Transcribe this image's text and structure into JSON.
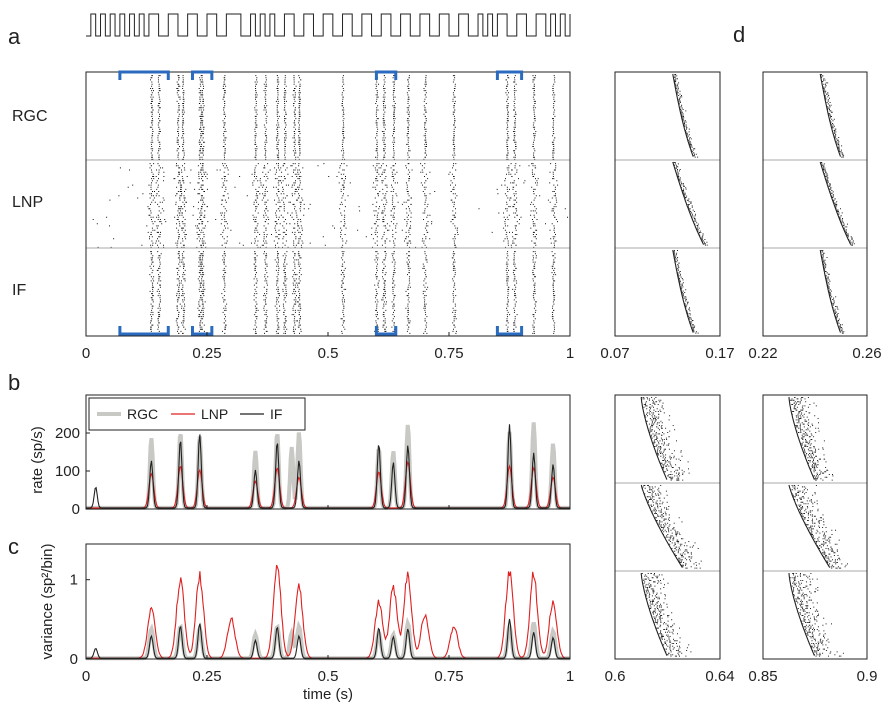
{
  "panel_labels": {
    "a": "a",
    "b": "b",
    "c": "c",
    "d": "d"
  },
  "row_labels": [
    "RGC",
    "LNP",
    "IF"
  ],
  "raster_main": {
    "x_ticks": [
      "0",
      "0.25",
      "0.5",
      "0.75",
      "1"
    ],
    "xlim": [
      0,
      1
    ],
    "highlight_windows": [
      [
        0.07,
        0.17
      ],
      [
        0.22,
        0.26
      ],
      [
        0.6,
        0.64
      ],
      [
        0.85,
        0.9
      ]
    ]
  },
  "stimulus": {
    "description_levels": [
      "low",
      "high"
    ],
    "transitions": [
      0.0,
      0.01,
      0.02,
      0.03,
      0.04,
      0.05,
      0.06,
      0.07,
      0.08,
      0.09,
      0.1,
      0.11,
      0.12,
      0.13,
      0.15,
      0.17,
      0.19,
      0.21,
      0.23,
      0.25,
      0.27,
      0.29,
      0.32,
      0.34,
      0.35,
      0.36,
      0.37,
      0.38,
      0.39,
      0.41,
      0.43,
      0.45,
      0.47,
      0.49,
      0.51,
      0.53,
      0.55,
      0.57,
      0.59,
      0.61,
      0.63,
      0.65,
      0.67,
      0.69,
      0.71,
      0.73,
      0.75,
      0.77,
      0.79,
      0.81,
      0.82,
      0.83,
      0.84,
      0.85,
      0.87,
      0.89,
      0.91,
      0.93,
      0.95,
      0.96,
      0.97,
      0.98,
      0.99,
      1.0
    ]
  },
  "zoom_panels": [
    {
      "x_ticks": [
        "0.07",
        "0.17"
      ]
    },
    {
      "x_ticks": [
        "0.22",
        "0.26"
      ]
    },
    {
      "x_ticks": [
        "0.6",
        "0.64"
      ]
    },
    {
      "x_ticks": [
        "0.85",
        "0.9"
      ]
    }
  ],
  "chart_data": [
    {
      "type": "line",
      "panel": "b",
      "ylabel": "rate (sp/s)",
      "xlabel": "",
      "ylim": [
        0,
        300
      ],
      "y_ticks": [
        "0",
        "100",
        "200"
      ],
      "x_ticks": [
        "0",
        "0.25",
        "0.5",
        "0.75",
        "1"
      ],
      "xlim": [
        0,
        1
      ],
      "legend": {
        "position": "top-left",
        "entries": [
          "RGC",
          "LNP",
          "IF"
        ]
      },
      "series": [
        {
          "name": "RGC",
          "color": "#c8c8c4",
          "peaks": [
            [
              0.135,
              185
            ],
            [
              0.195,
              200
            ],
            [
              0.235,
              190
            ],
            [
              0.35,
              150
            ],
            [
              0.395,
              200
            ],
            [
              0.425,
              160
            ],
            [
              0.44,
              200
            ],
            [
              0.605,
              160
            ],
            [
              0.635,
              150
            ],
            [
              0.665,
              220
            ],
            [
              0.875,
              200
            ],
            [
              0.925,
              225
            ],
            [
              0.965,
              170
            ]
          ]
        },
        {
          "name": "LNP",
          "color": "#e02020",
          "peaks": [
            [
              0.135,
              90
            ],
            [
              0.195,
              110
            ],
            [
              0.235,
              100
            ],
            [
              0.35,
              70
            ],
            [
              0.395,
              105
            ],
            [
              0.44,
              80
            ],
            [
              0.605,
              95
            ],
            [
              0.665,
              120
            ],
            [
              0.875,
              110
            ],
            [
              0.925,
              105
            ],
            [
              0.965,
              80
            ]
          ]
        },
        {
          "name": "IF",
          "color": "#222222",
          "peaks": [
            [
              0.02,
              55
            ],
            [
              0.135,
              125
            ],
            [
              0.195,
              180
            ],
            [
              0.235,
              195
            ],
            [
              0.35,
              100
            ],
            [
              0.395,
              175
            ],
            [
              0.44,
              125
            ],
            [
              0.605,
              170
            ],
            [
              0.635,
              120
            ],
            [
              0.665,
              165
            ],
            [
              0.875,
              220
            ],
            [
              0.925,
              145
            ],
            [
              0.965,
              115
            ]
          ]
        }
      ]
    },
    {
      "type": "line",
      "panel": "c",
      "ylabel": "variance (sp²/bin)",
      "xlabel": "time (s)",
      "ylim": [
        0,
        1.45
      ],
      "y_ticks": [
        "0",
        "1"
      ],
      "x_ticks": [
        "0",
        "0.25",
        "0.5",
        "0.75",
        "1"
      ],
      "xlim": [
        0,
        1
      ],
      "series": [
        {
          "name": "RGC",
          "color": "#c8c8c4"
        },
        {
          "name": "LNP",
          "color": "#e02020"
        },
        {
          "name": "IF",
          "color": "#222222"
        }
      ]
    }
  ]
}
